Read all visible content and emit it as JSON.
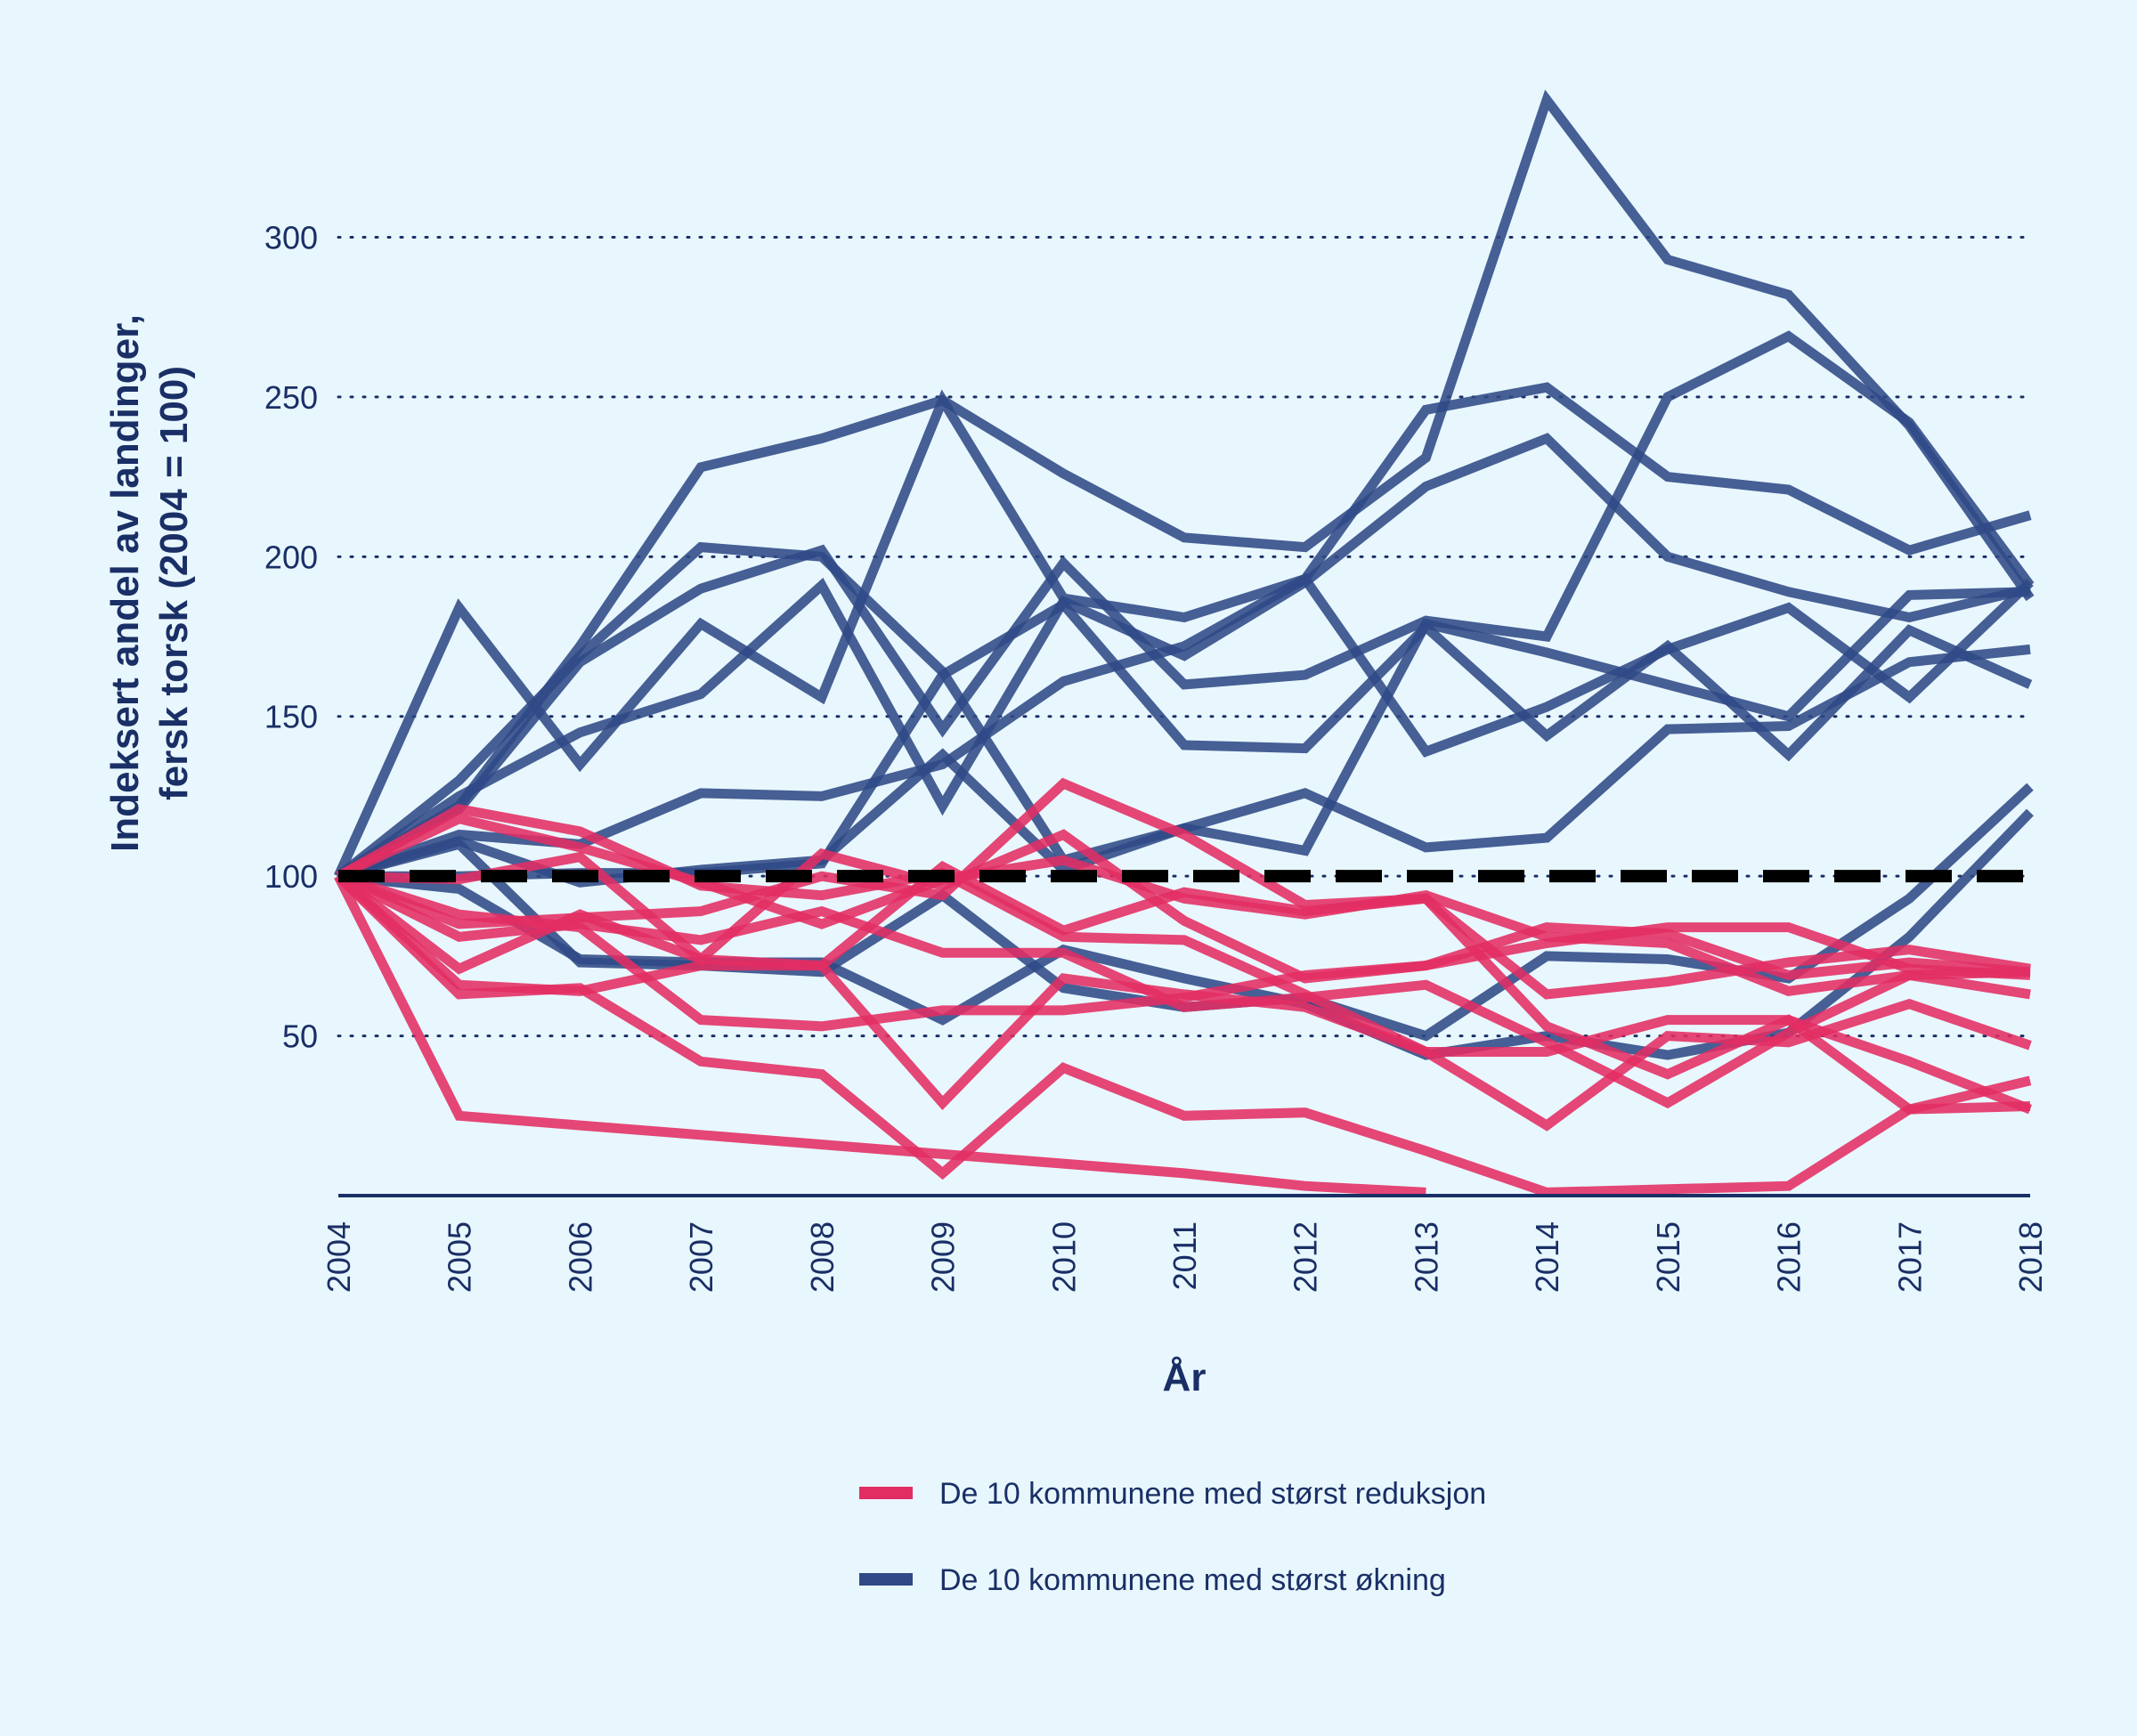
{
  "chart_data": {
    "type": "line",
    "title": "",
    "xlabel": "År",
    "ylabel_line1": "Indeksert andel av landinger,",
    "ylabel_line2": "fersk torsk (2004 = 100)",
    "ylim": [
      0,
      345
    ],
    "yticks": [
      50,
      100,
      150,
      200,
      250,
      300
    ],
    "x": [
      2004,
      2005,
      2006,
      2007,
      2008,
      2009,
      2010,
      2011,
      2012,
      2013,
      2014,
      2015,
      2016,
      2017,
      2018
    ],
    "grid": "horizontal dotted",
    "reference_line": {
      "y": 100,
      "style": "dashed",
      "color": "#000000"
    },
    "legend_position": "bottom",
    "groups": [
      {
        "key": "reduksjon",
        "label": "De 10 kommunene med størst reduksjon",
        "color": "#e22d63"
      },
      {
        "key": "okning",
        "label": "De 10 kommunene med størst økning",
        "color": "#2f4a86"
      }
    ],
    "series": [
      {
        "group": "reduksjon",
        "values": [
          100,
          25,
          22,
          19,
          16,
          13,
          10,
          7,
          3,
          1,
          null,
          null,
          null,
          null,
          null
        ]
      },
      {
        "group": "reduksjon",
        "values": [
          100,
          63,
          65,
          42,
          38,
          7,
          40,
          25,
          26,
          14,
          1,
          2,
          3,
          27,
          28
        ]
      },
      {
        "group": "reduksjon",
        "values": [
          100,
          85,
          87,
          89,
          100,
          94,
          129,
          113,
          91,
          93,
          63,
          67,
          73,
          77,
          71
        ]
      },
      {
        "group": "reduksjon",
        "values": [
          100,
          88,
          84,
          55,
          53,
          58,
          58,
          62,
          69,
          72,
          79,
          84,
          84,
          71,
          69
        ]
      },
      {
        "group": "reduksjon",
        "values": [
          100,
          121,
          114,
          97,
          94,
          101,
          81,
          80,
          63,
          45,
          45,
          55,
          55,
          42,
          27
        ]
      },
      {
        "group": "reduksjon",
        "values": [
          100,
          71,
          88,
          74,
          72,
          29,
          68,
          63,
          59,
          45,
          22,
          50,
          48,
          60,
          47
        ]
      },
      {
        "group": "reduksjon",
        "values": [
          100,
          81,
          85,
          80,
          89,
          76,
          76,
          59,
          62,
          66,
          48,
          29,
          51,
          69,
          63
        ]
      },
      {
        "group": "reduksjon",
        "values": [
          100,
          66,
          64,
          72,
          72,
          103,
          83,
          95,
          89,
          93,
          53,
          38,
          55,
          27,
          36
        ]
      },
      {
        "group": "reduksjon",
        "values": [
          100,
          99,
          106,
          74,
          107,
          97,
          113,
          86,
          68,
          72,
          84,
          82,
          69,
          73,
          70
        ]
      },
      {
        "group": "reduksjon",
        "values": [
          100,
          118,
          109,
          98,
          85,
          99,
          105,
          93,
          88,
          94,
          81,
          79,
          64,
          69,
          70
        ]
      },
      {
        "group": "okning",
        "values": [
          100,
          184,
          135,
          179,
          156,
          249,
          187,
          181,
          193,
          246,
          253,
          225,
          221,
          202,
          213
        ]
      },
      {
        "group": "okning",
        "values": [
          100,
          113,
          110,
          126,
          125,
          135,
          161,
          172,
          193,
          139,
          153,
          171,
          184,
          156,
          192
        ]
      },
      {
        "group": "okning",
        "values": [
          100,
          121,
          167,
          190,
          202,
          146,
          198,
          160,
          163,
          180,
          175,
          250,
          269,
          242,
          191
        ]
      },
      {
        "group": "okning",
        "values": [
          100,
          122,
          172,
          228,
          237,
          249,
          226,
          206,
          203,
          231,
          343,
          293,
          282,
          241,
          187
        ]
      },
      {
        "group": "okning",
        "values": [
          100,
          110,
          73,
          72,
          70,
          94,
          65,
          59,
          62,
          50,
          75,
          74,
          68,
          93,
          128
        ]
      },
      {
        "group": "okning",
        "values": [
          100,
          125,
          145,
          157,
          191,
          122,
          186,
          169,
          192,
          222,
          237,
          200,
          189,
          181,
          190
        ]
      },
      {
        "group": "okning",
        "values": [
          100,
          100,
          101,
          101,
          104,
          163,
          185,
          141,
          140,
          178,
          144,
          172,
          138,
          177,
          160
        ]
      },
      {
        "group": "okning",
        "values": [
          100,
          130,
          169,
          203,
          200,
          164,
          105,
          115,
          126,
          109,
          112,
          146,
          147,
          167,
          171
        ]
      },
      {
        "group": "okning",
        "values": [
          100,
          96,
          74,
          73,
          73,
          55,
          77,
          68,
          60,
          44,
          50,
          44,
          51,
          81,
          120
        ]
      },
      {
        "group": "okning",
        "values": [
          100,
          111,
          98,
          102,
          105,
          138,
          102,
          115,
          108,
          179,
          170,
          160,
          150,
          188,
          189
        ]
      }
    ]
  }
}
